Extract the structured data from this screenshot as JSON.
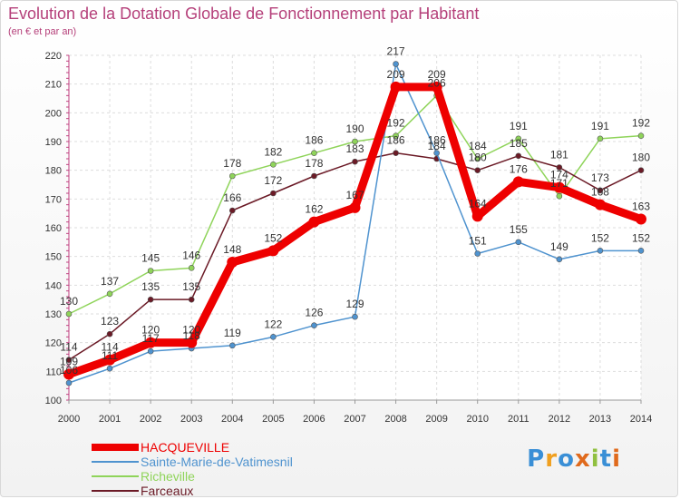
{
  "title": "Evolution de la Dotation Globale de Fonctionnement par Habitant",
  "subtitle": "(en € et par an)",
  "logo": "Proxiti",
  "chart_data": {
    "type": "line",
    "x": [
      "2000",
      "2001",
      "2002",
      "2003",
      "2004",
      "2005",
      "2006",
      "2007",
      "2008",
      "2009",
      "2010",
      "2011",
      "2012",
      "2013",
      "2014"
    ],
    "ylim": [
      100,
      220
    ],
    "yticks": [
      100,
      110,
      120,
      130,
      140,
      150,
      160,
      170,
      180,
      190,
      200,
      210,
      220
    ],
    "grid": true,
    "legend": "bottom-left",
    "series": [
      {
        "name": "Richeville",
        "color": "#8fd45a",
        "values": [
          130,
          137,
          145,
          146,
          178,
          182,
          186,
          190,
          192,
          206,
          184,
          191,
          171,
          191,
          192
        ],
        "labels": [
          "130",
          "137",
          "145",
          "146",
          "178",
          "182",
          "186",
          "190",
          "192",
          "206",
          "184",
          "191",
          "171",
          "191",
          "192"
        ]
      },
      {
        "name": "Farceaux",
        "color": "#6b1a26",
        "values": [
          114,
          123,
          135,
          135,
          166,
          172,
          178,
          183,
          186,
          184,
          180,
          185,
          181,
          173,
          180
        ],
        "labels": [
          "114",
          "123",
          "135",
          "135",
          "166",
          "172",
          "178",
          "183",
          "186",
          "184",
          "180",
          "185",
          "181",
          "173",
          "180"
        ]
      },
      {
        "name": "Sainte-Marie-de-Vatimesnil",
        "color": "#4f93cf",
        "values": [
          106,
          111,
          117,
          118,
          119,
          122,
          126,
          129,
          217,
          186,
          151,
          155,
          149,
          152,
          152
        ],
        "labels": [
          "106",
          "111",
          "117",
          "118",
          "119",
          "122",
          "126",
          "129",
          "217",
          "186",
          "151",
          "155",
          "149",
          "152",
          "152"
        ]
      },
      {
        "name": "HACQUEVILLE",
        "color": "#ee0000",
        "values": [
          109,
          114,
          120,
          120,
          148,
          152,
          162,
          167,
          209,
          209,
          164,
          176,
          174,
          168,
          163
        ],
        "labels": [
          "109",
          "114",
          "120",
          "120",
          "148",
          "152",
          "162",
          "167",
          "209",
          "209",
          "164",
          "176",
          "174",
          "168",
          "163"
        ]
      }
    ]
  },
  "legend_items": [
    {
      "name": "HACQUEVILLE",
      "color": "#ee0000"
    },
    {
      "name": "Sainte-Marie-de-Vatimesnil",
      "color": "#4f93cf"
    },
    {
      "name": "Richeville",
      "color": "#8fd45a"
    },
    {
      "name": "Farceaux",
      "color": "#6b1a26"
    }
  ]
}
